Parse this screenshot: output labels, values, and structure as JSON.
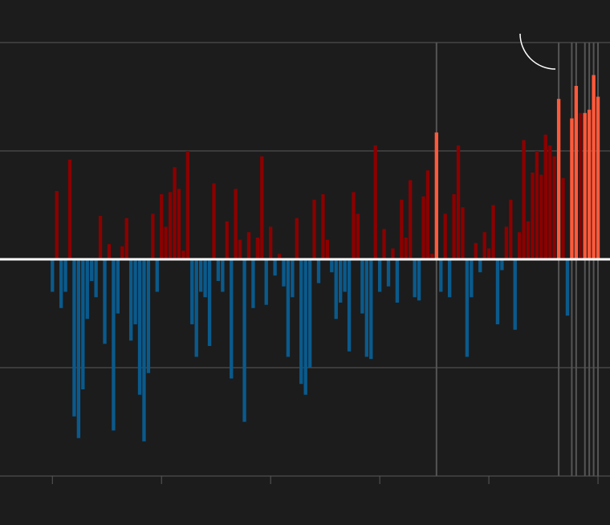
{
  "chart_data": {
    "type": "bar",
    "xlim": [
      -24,
      255.5
    ],
    "xticks": [
      0,
      50,
      100,
      150,
      200,
      250
    ],
    "ylim": [
      -2,
      2
    ],
    "yticks": [
      -2,
      -1,
      0,
      1,
      2
    ],
    "grid": true,
    "bar_width": 1.6,
    "grid_color": "#5a5a5a",
    "zero_line_color": "#ffffff",
    "record_lines": true,
    "record_line_color": "#555555",
    "series": [
      {
        "color": "#0a5a8c",
        "x": [
          0,
          4,
          6,
          10,
          12,
          14,
          16,
          18,
          20,
          24,
          28,
          30,
          36,
          38,
          40,
          42,
          44,
          48,
          64,
          66,
          68,
          70,
          72,
          76,
          78,
          82,
          88,
          92,
          98,
          102,
          106,
          108,
          110,
          114,
          116,
          118,
          122,
          128,
          130,
          132,
          134,
          136,
          142,
          144,
          146,
          150,
          154,
          158,
          166,
          168,
          178,
          182,
          190,
          192,
          196,
          204,
          206,
          212,
          236
        ],
        "values": [
          -0.3,
          -0.45,
          -0.3,
          -1.45,
          -1.65,
          -1.2,
          -0.55,
          -0.2,
          -0.35,
          -0.78,
          -1.58,
          -0.5,
          -0.75,
          -0.6,
          -1.25,
          -1.68,
          -1.05,
          -0.3,
          -0.6,
          -0.9,
          -0.3,
          -0.35,
          -0.8,
          -0.2,
          -0.3,
          -1.1,
          -1.5,
          -0.45,
          -0.42,
          -0.15,
          -0.25,
          -0.9,
          -0.35,
          -1.15,
          -1.25,
          -1.0,
          -0.22,
          -0.12,
          -0.55,
          -0.4,
          -0.3,
          -0.85,
          -0.5,
          -0.9,
          -0.92,
          -0.3,
          -0.25,
          -0.4,
          -0.35,
          -0.38,
          -0.3,
          -0.35,
          -0.9,
          -0.35,
          -0.12,
          -0.6,
          -0.1,
          -0.65,
          -0.52
        ]
      },
      {
        "color": "#8b0000",
        "x": [
          2,
          8,
          22,
          26,
          32,
          34,
          46,
          50,
          52,
          54,
          56,
          58,
          60,
          62,
          74,
          80,
          84,
          86,
          90,
          94,
          96,
          100,
          104,
          112,
          120,
          124,
          126,
          138,
          140,
          148,
          152,
          156,
          160,
          162,
          164,
          170,
          172,
          174,
          180,
          184,
          186,
          188,
          194,
          198,
          200,
          202,
          208,
          210,
          214,
          216,
          218,
          220,
          222,
          224,
          226,
          228,
          230,
          234,
          242
        ],
        "values": [
          0.63,
          0.92,
          0.4,
          0.14,
          0.12,
          0.38,
          0.42,
          0.6,
          0.3,
          0.62,
          0.85,
          0.65,
          0.08,
          1.0,
          0.7,
          0.35,
          0.65,
          0.18,
          0.25,
          0.2,
          0.95,
          0.3,
          0.05,
          0.38,
          0.55,
          0.6,
          0.18,
          0.62,
          0.42,
          1.05,
          0.28,
          0.1,
          0.55,
          0.2,
          0.73,
          0.58,
          0.82,
          0.05,
          0.42,
          0.6,
          1.05,
          0.48,
          0.15,
          0.25,
          0.1,
          0.5,
          0.3,
          0.55,
          0.25,
          1.1,
          0.35,
          0.8,
          1.0,
          0.78,
          1.15,
          1.05,
          0.95,
          0.75,
          1.35
        ]
      },
      {
        "color": "#ff5a3c",
        "record": true,
        "x": [
          176,
          232,
          238,
          240,
          244,
          246,
          248,
          250
        ],
        "values": [
          1.17,
          1.48,
          1.3,
          1.6,
          1.35,
          1.38,
          1.7,
          1.5
        ]
      }
    ]
  }
}
